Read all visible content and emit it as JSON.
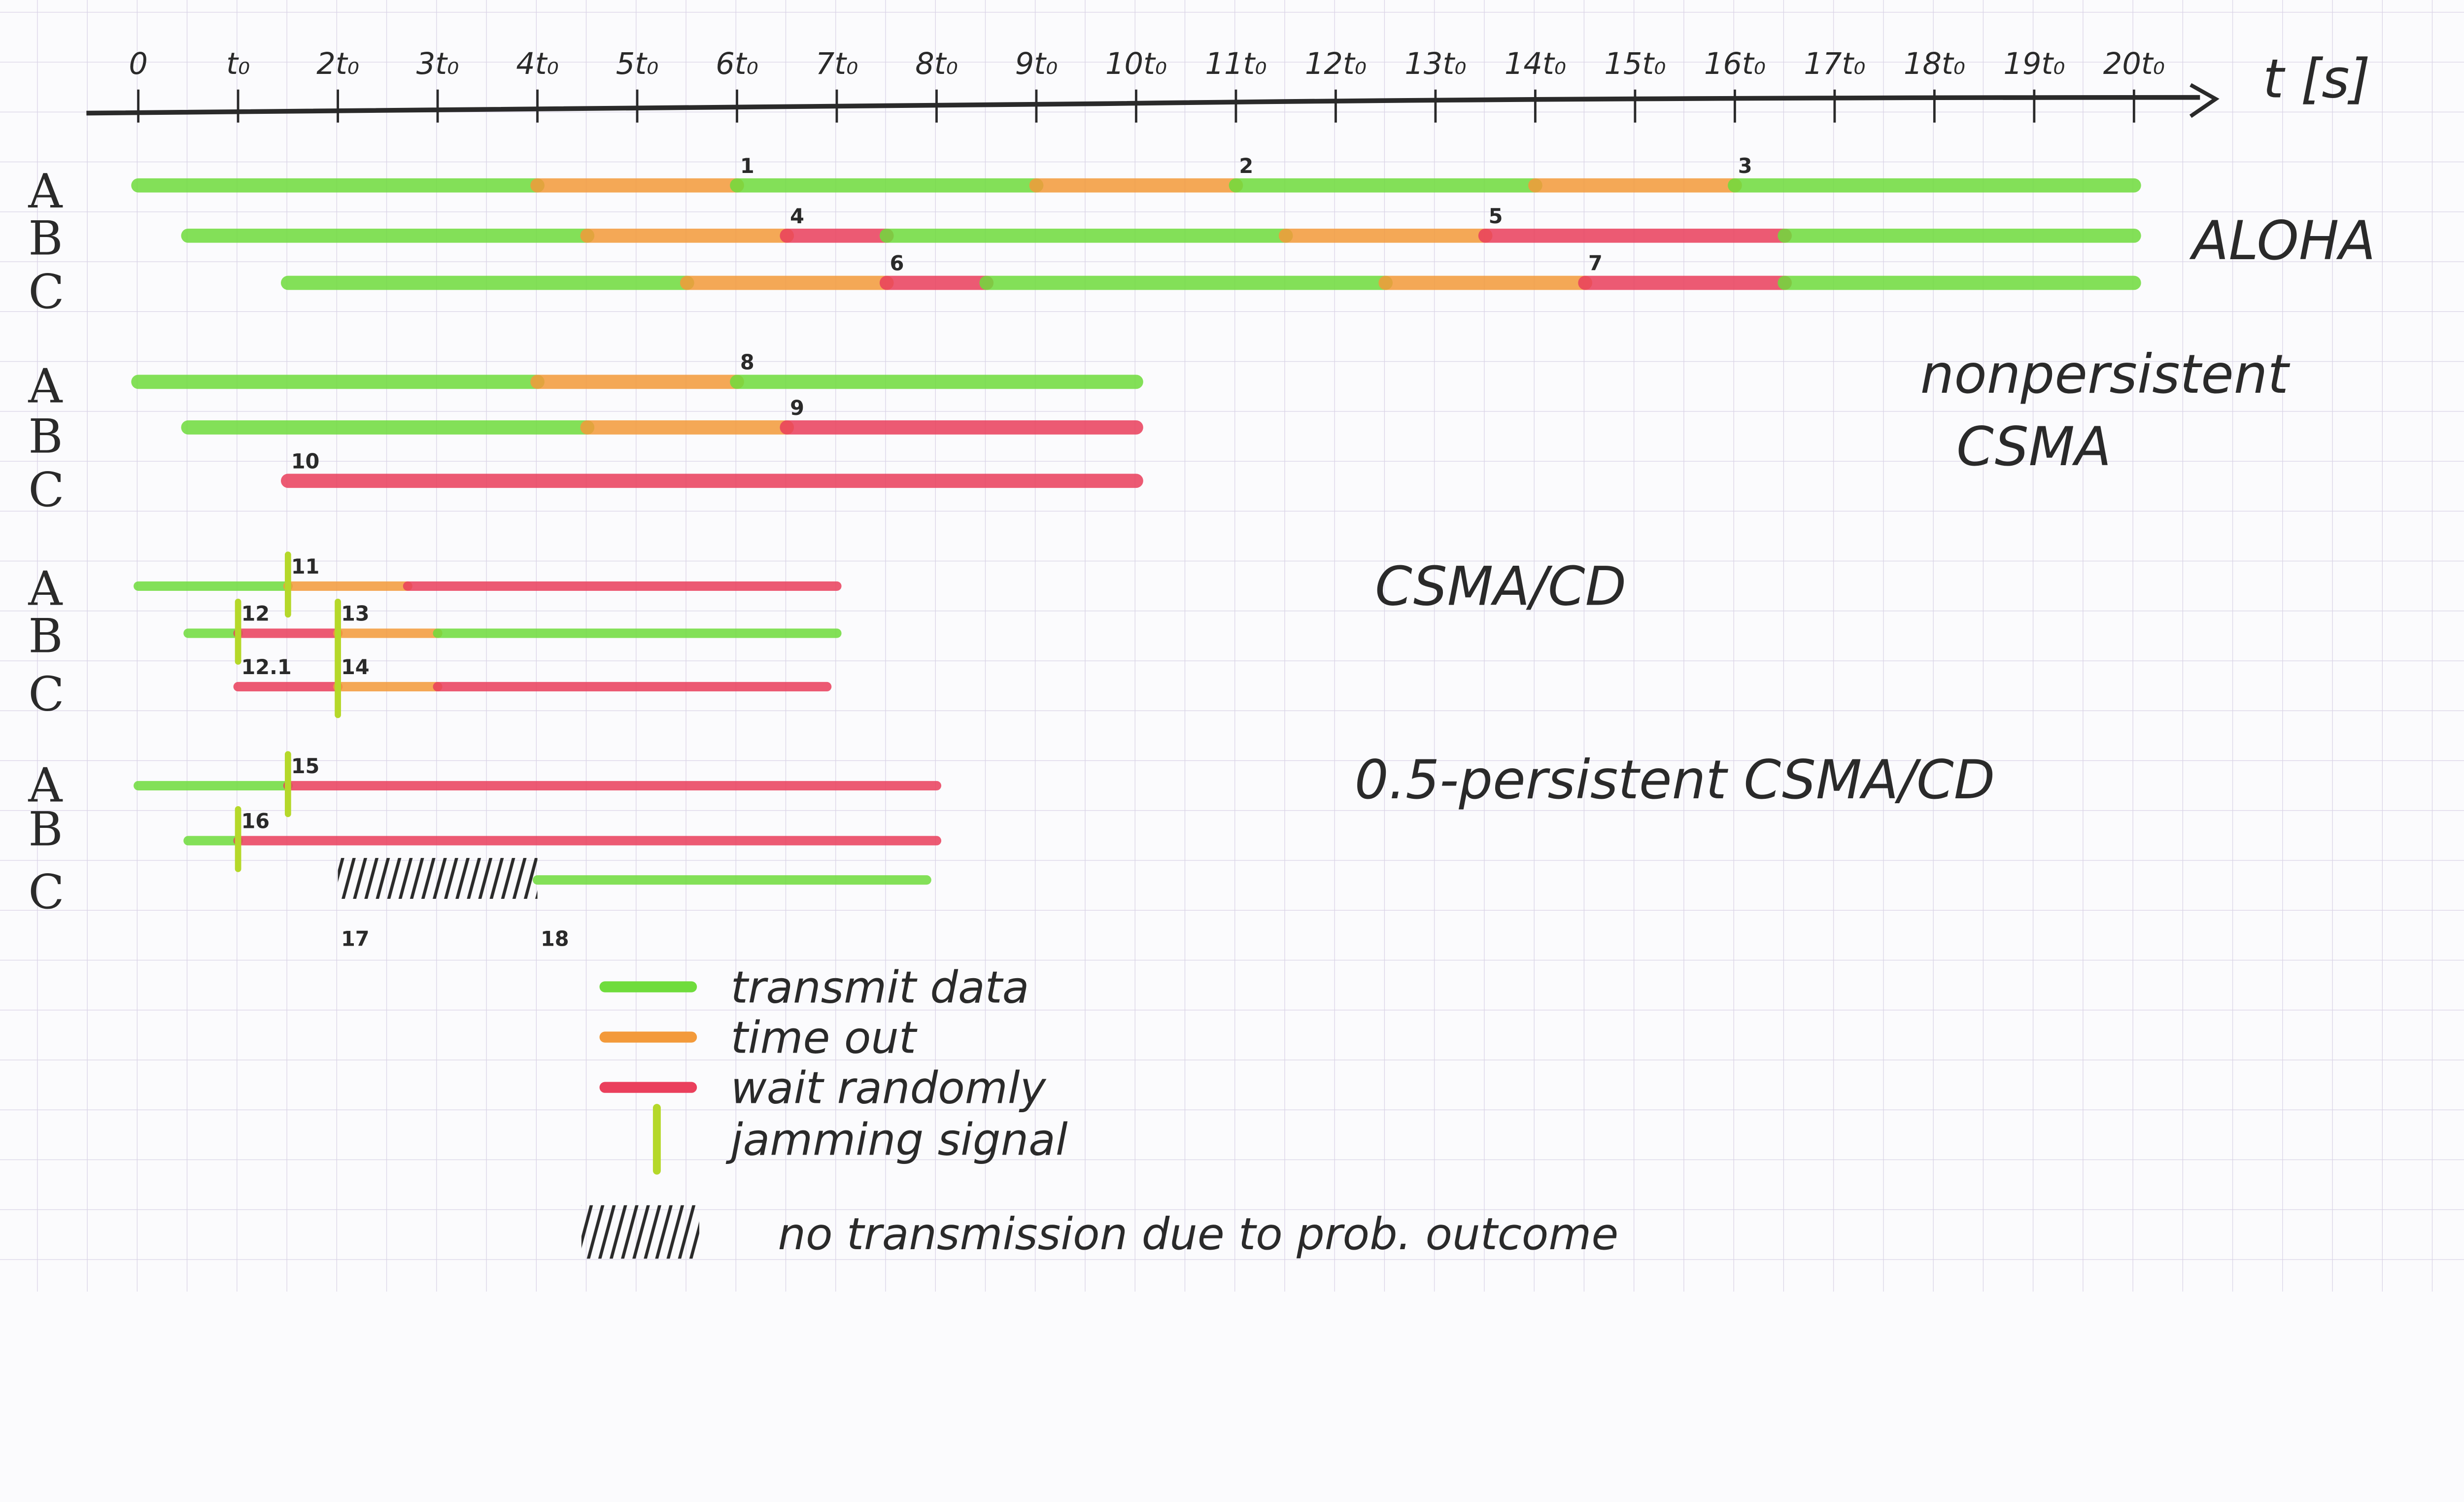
{
  "axis": {
    "label": "t [s]",
    "ticks": [
      "0",
      "t₀",
      "2t₀",
      "3t₀",
      "4t₀",
      "5t₀",
      "6t₀",
      "7t₀",
      "8t₀",
      "9t₀",
      "10t₀",
      "11t₀",
      "12t₀",
      "13t₀",
      "14t₀",
      "15t₀",
      "16t₀",
      "17t₀",
      "18t₀",
      "19t₀",
      "20t₀"
    ],
    "unit": "t₀"
  },
  "colors": {
    "transmit": "#6fdc3c",
    "timeout": "#f39a3a",
    "wait": "#ea3f5c",
    "jam": "#b5d82a",
    "ink": "#2a2a2a",
    "grid": "#d6cfe4"
  },
  "stations": [
    "A",
    "B",
    "C"
  ],
  "panels": [
    {
      "title_lines": [
        "ALOHA"
      ],
      "rows": [
        {
          "station": "A",
          "segments": [
            [
              0,
              4,
              "transmit"
            ],
            [
              4,
              6,
              "timeout"
            ],
            [
              6,
              9,
              "transmit"
            ],
            [
              9,
              11,
              "timeout"
            ],
            [
              11,
              14,
              "transmit"
            ],
            [
              14,
              16,
              "timeout"
            ],
            [
              16,
              20,
              "transmit"
            ]
          ]
        },
        {
          "station": "B",
          "segments": [
            [
              0.5,
              4.5,
              "transmit"
            ],
            [
              4.5,
              6.5,
              "timeout"
            ],
            [
              6.5,
              7.5,
              "wait"
            ],
            [
              7.5,
              11.5,
              "transmit"
            ],
            [
              11.5,
              13.5,
              "timeout"
            ],
            [
              13.5,
              16.5,
              "wait"
            ],
            [
              16.5,
              20,
              "transmit"
            ]
          ]
        },
        {
          "station": "C",
          "segments": [
            [
              1.5,
              5.5,
              "transmit"
            ],
            [
              5.5,
              7.5,
              "timeout"
            ],
            [
              7.5,
              8.5,
              "wait"
            ],
            [
              8.5,
              12.5,
              "transmit"
            ],
            [
              12.5,
              14.5,
              "timeout"
            ],
            [
              14.5,
              16.5,
              "wait"
            ],
            [
              16.5,
              20,
              "transmit"
            ]
          ]
        }
      ],
      "events": [
        {
          "label": "1",
          "station": "A",
          "t": 6
        },
        {
          "label": "2",
          "station": "A",
          "t": 11
        },
        {
          "label": "3",
          "station": "A",
          "t": 16
        },
        {
          "label": "4",
          "station": "B",
          "t": 6.5
        },
        {
          "label": "5",
          "station": "B",
          "t": 13.5
        },
        {
          "label": "6",
          "station": "C",
          "t": 7.5
        },
        {
          "label": "7",
          "station": "C",
          "t": 14.5
        }
      ],
      "jams": [],
      "hatch": null
    },
    {
      "title_lines": [
        "nonpersistent",
        "CSMA"
      ],
      "rows": [
        {
          "station": "A",
          "segments": [
            [
              0,
              4,
              "transmit"
            ],
            [
              4,
              6,
              "timeout"
            ],
            [
              6,
              10,
              "transmit"
            ]
          ]
        },
        {
          "station": "B",
          "segments": [
            [
              0.5,
              4.5,
              "transmit"
            ],
            [
              4.5,
              6.5,
              "timeout"
            ],
            [
              6.5,
              10,
              "wait"
            ]
          ]
        },
        {
          "station": "C",
          "segments": [
            [
              1.5,
              10,
              "wait"
            ]
          ]
        }
      ],
      "events": [
        {
          "label": "8",
          "station": "A",
          "t": 6
        },
        {
          "label": "9",
          "station": "B",
          "t": 6.5
        },
        {
          "label": "10",
          "station": "C",
          "t": 1.5
        }
      ],
      "jams": [],
      "hatch": null
    },
    {
      "title_lines": [
        "CSMA/CD"
      ],
      "rows": [
        {
          "station": "A",
          "segments": [
            [
              0,
              1.5,
              "transmit"
            ],
            [
              1.5,
              2.7,
              "timeout"
            ],
            [
              2.7,
              7,
              "wait"
            ]
          ]
        },
        {
          "station": "B",
          "segments": [
            [
              0.5,
              1,
              "transmit"
            ],
            [
              1,
              2,
              "wait"
            ],
            [
              2,
              3,
              "timeout"
            ],
            [
              3,
              7,
              "transmit"
            ]
          ]
        },
        {
          "station": "C",
          "segments": [
            [
              1,
              2,
              "wait"
            ],
            [
              2,
              3,
              "timeout"
            ],
            [
              3,
              6.9,
              "wait"
            ]
          ]
        }
      ],
      "events": [
        {
          "label": "11",
          "station": "A",
          "t": 1.5
        },
        {
          "label": "12",
          "station": "B",
          "t": 1
        },
        {
          "label": "12.1",
          "station": "C",
          "t": 1
        },
        {
          "label": "13",
          "station": "B",
          "t": 2
        },
        {
          "label": "14",
          "station": "C",
          "t": 2
        }
      ],
      "jams": [
        {
          "t": 1.5,
          "stations": [
            "A"
          ]
        },
        {
          "t": 1,
          "stations": [
            "B"
          ]
        },
        {
          "t": 2,
          "stations": [
            "B",
            "C"
          ]
        }
      ],
      "hatch": null
    },
    {
      "title_lines": [
        "0.5-persistent  CSMA/CD"
      ],
      "rows": [
        {
          "station": "A",
          "segments": [
            [
              0,
              1.5,
              "transmit"
            ],
            [
              1.5,
              8,
              "wait"
            ]
          ]
        },
        {
          "station": "B",
          "segments": [
            [
              0.5,
              1,
              "transmit"
            ],
            [
              1,
              8,
              "wait"
            ]
          ]
        },
        {
          "station": "C",
          "segments": [
            [
              4,
              7.9,
              "transmit"
            ]
          ]
        }
      ],
      "events": [
        {
          "label": "15",
          "station": "A",
          "t": 1.5
        },
        {
          "label": "16",
          "station": "B",
          "t": 1
        },
        {
          "label": "17",
          "station": "C",
          "t": 2,
          "below": true
        },
        {
          "label": "18",
          "station": "C",
          "t": 4,
          "below": true
        }
      ],
      "jams": [
        {
          "t": 1.5,
          "stations": [
            "A"
          ]
        },
        {
          "t": 1,
          "stations": [
            "B"
          ]
        }
      ],
      "hatch": {
        "station": "C",
        "from": 2,
        "to": 4
      }
    }
  ],
  "legend": [
    {
      "kind": "transmit",
      "label": "transmit data"
    },
    {
      "kind": "timeout",
      "label": "time out"
    },
    {
      "kind": "wait",
      "label": "wait randomly"
    },
    {
      "kind": "jam",
      "label": "jamming signal"
    },
    {
      "kind": "hatch",
      "label": "no transmission due to prob. outcome"
    }
  ]
}
